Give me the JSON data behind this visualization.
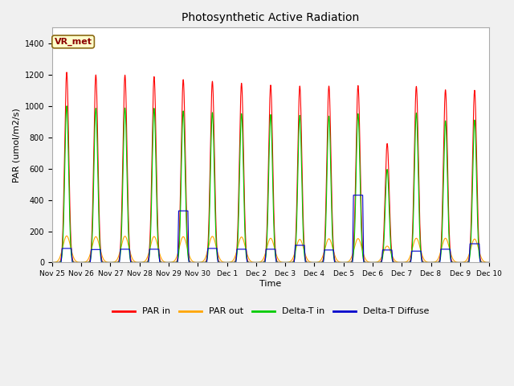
{
  "title": "Photosynthetic Active Radiation",
  "xlabel": "Time",
  "ylabel": "PAR (umol/m2/s)",
  "ylim": [
    0,
    1500
  ],
  "yticks": [
    0,
    200,
    400,
    600,
    800,
    1000,
    1200,
    1400
  ],
  "x_labels": [
    "Nov 25",
    "Nov 26",
    "Nov 27",
    "Nov 28",
    "Nov 29",
    "Nov 30",
    "Dec 1",
    "Dec 2",
    "Dec 3",
    "Dec 4",
    "Dec 5",
    "Dec 6",
    "Dec 7",
    "Dec 8",
    "Dec 9",
    "Dec 10"
  ],
  "background_color": "#f0f0f0",
  "plot_bg_color": "#f0f0f0",
  "legend_label": "VR_met",
  "colors": {
    "PAR_in": "#ff0000",
    "PAR_out": "#ffa500",
    "Delta_T_in": "#00cc00",
    "Delta_T_diffuse": "#0000cc"
  },
  "n_days": 15,
  "day_peaks": {
    "PAR_in": [
      1215,
      1198,
      1197,
      1187,
      1168,
      1157,
      1145,
      1133,
      1127,
      1127,
      1130,
      760,
      1125,
      1103,
      1100
    ],
    "PAR_out": [
      170,
      165,
      168,
      166,
      165,
      167,
      163,
      155,
      148,
      152,
      153,
      105,
      155,
      155,
      150
    ],
    "Delta_T_in": [
      1000,
      985,
      987,
      985,
      968,
      958,
      950,
      945,
      940,
      935,
      950,
      595,
      955,
      905,
      910
    ],
    "Delta_T_diffuse_normal": [
      90,
      83,
      85,
      85,
      90,
      90,
      85,
      85,
      110,
      80,
      80,
      80,
      73,
      85,
      120
    ],
    "Delta_T_diffuse_special": [
      330,
      430
    ]
  },
  "special_days": [
    4,
    10
  ],
  "figsize": [
    6.4,
    4.8
  ],
  "dpi": 100
}
